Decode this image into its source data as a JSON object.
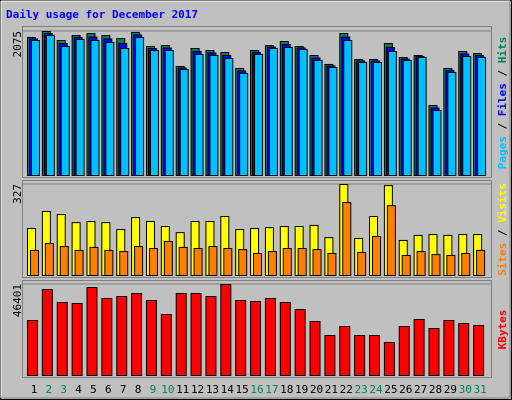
{
  "title": "Daily usage for December 2017",
  "title_color": "#0000ff",
  "separator": " / ",
  "categories": [
    "1",
    "2",
    "3",
    "4",
    "5",
    "6",
    "7",
    "8",
    "9",
    "10",
    "11",
    "12",
    "13",
    "14",
    "15",
    "16",
    "17",
    "18",
    "19",
    "20",
    "21",
    "22",
    "23",
    "24",
    "25",
    "26",
    "27",
    "28",
    "29",
    "30",
    "31"
  ],
  "category_colors": [
    "#000000",
    "#00805c",
    "#00805c",
    "#000000",
    "#000000",
    "#000000",
    "#000000",
    "#000000",
    "#00805c",
    "#00805c",
    "#000000",
    "#000000",
    "#000000",
    "#000000",
    "#000000",
    "#00805c",
    "#00805c",
    "#000000",
    "#000000",
    "#000000",
    "#000000",
    "#000000",
    "#00805c",
    "#00805c",
    "#000000",
    "#000000",
    "#000000",
    "#000000",
    "#000000",
    "#00805c",
    "#00805c"
  ],
  "chart_data": [
    {
      "type": "bar",
      "ylim": [
        0,
        2075
      ],
      "yticks": [
        2075
      ],
      "grid": true,
      "series": [
        {
          "name": "Hits",
          "color": "#00805c",
          "values": [
            1989,
            2075,
            1945,
            2017,
            2046,
            2017,
            1974,
            2061,
            1859,
            1873,
            1571,
            1830,
            1801,
            1772,
            1542,
            1801,
            1873,
            1931,
            1859,
            1729,
            1600,
            2046,
            1672,
            1672,
            1902,
            1700,
            1729,
            1009,
            1542,
            1787,
            1758
          ]
        },
        {
          "name": "Files",
          "color": "#0000ff",
          "values": [
            1967,
            2046,
            1902,
            1989,
            1995,
            1967,
            1902,
            2025,
            1830,
            1837,
            1549,
            1787,
            1765,
            1729,
            1506,
            1772,
            1851,
            1888,
            1837,
            1693,
            1578,
            1995,
            1650,
            1650,
            1845,
            1678,
            1714,
            973,
            1513,
            1751,
            1729
          ]
        },
        {
          "name": "Pages",
          "color": "#00c0ff",
          "values": [
            1945,
            2017,
            1859,
            1960,
            1945,
            1917,
            1830,
            1989,
            1801,
            1801,
            1527,
            1744,
            1729,
            1686,
            1470,
            1744,
            1830,
            1845,
            1816,
            1657,
            1556,
            1945,
            1628,
            1628,
            1787,
            1657,
            1700,
            937,
            1484,
            1715,
            1700
          ]
        }
      ]
    },
    {
      "type": "bar",
      "ylim": [
        0,
        327
      ],
      "yticks": [
        327
      ],
      "grid": true,
      "series": [
        {
          "name": "Visits",
          "color": "#ffff00",
          "values": [
            169,
            230,
            219,
            190,
            194,
            190,
            165,
            208,
            194,
            176,
            154,
            194,
            194,
            212,
            165,
            169,
            172,
            176,
            176,
            180,
            136,
            327,
            133,
            212,
            323,
            126,
            144,
            147,
            144,
            147,
            147
          ]
        },
        {
          "name": "Sites",
          "color": "#ff8000",
          "values": [
            90,
            115,
            104,
            90,
            101,
            90,
            86,
            104,
            97,
            122,
            101,
            97,
            104,
            97,
            93,
            79,
            86,
            97,
            97,
            93,
            79,
            262,
            83,
            140,
            251,
            72,
            86,
            75,
            72,
            79,
            90
          ]
        }
      ]
    },
    {
      "type": "bar",
      "ylim": [
        0,
        46401
      ],
      "yticks": [
        46401
      ],
      "grid": true,
      "series": [
        {
          "name": "KBytes",
          "color": "#ff0000",
          "values": [
            28045,
            43851,
            37223,
            36713,
            44871,
            39262,
            40282,
            41812,
            38243,
            31104,
            41812,
            41812,
            40282,
            46401,
            38243,
            37733,
            39262,
            37223,
            33653,
            27535,
            20396,
            24985,
            20396,
            20396,
            16827,
            24985,
            28554,
            23965,
            28045,
            26515,
            25495
          ]
        }
      ]
    }
  ]
}
